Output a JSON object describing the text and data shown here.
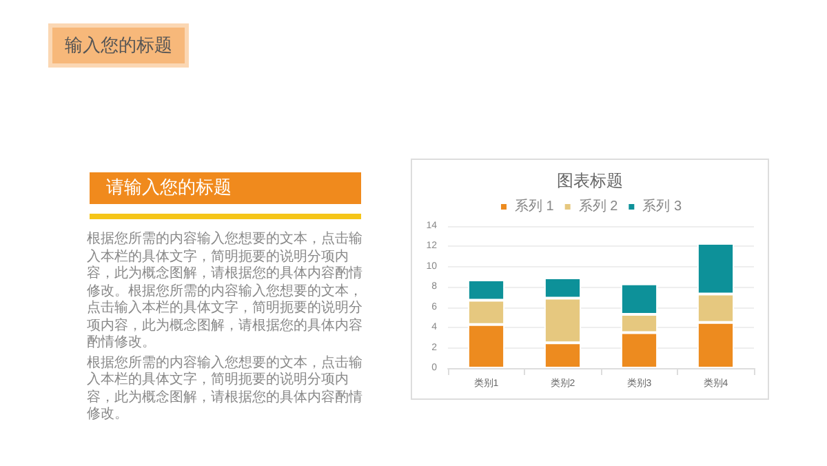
{
  "chart_data": [
    {
      "type": "other",
      "title": "输入您的标题",
      "subtitle": "请输入您的标题",
      "annotations": [
        "根据您所需的内容输入您想要的文本，点击输入本栏的具体文字，简明扼要的说明分项内容，此为概念图解，请根据您的具体内容酌情修改。根据您所需的内容输入您想要的文本，点击输入本栏的具体文字，简明扼要的说明分项内容，此为概念图解，请根据您的具体内容酌情修改。",
        "根据您所需的内容输入您想要的文本，点击输入本栏的具体文字，简明扼要的说明分项内容，此为概念图解，请根据您的具体内容酌情修改。"
      ]
    },
    {
      "type": "bar",
      "title": "图表标题",
      "categories": [
        "类别1",
        "类别2",
        "类别3",
        "类别4"
      ],
      "stacked": true,
      "series": [
        {
          "name": "系列 1",
          "color": "#ed8b1f",
          "values": [
            4.3,
            2.5,
            3.5,
            4.5
          ]
        },
        {
          "name": "系列 2",
          "color": "#e6c87f",
          "values": [
            2.4,
            4.4,
            1.8,
            2.8
          ]
        },
        {
          "name": "系列 3",
          "color": "#0d9199",
          "values": [
            2,
            2,
            3,
            5
          ]
        }
      ],
      "ylim": [
        0,
        14
      ],
      "yticks": [
        0,
        2,
        4,
        6,
        8,
        10,
        12,
        14
      ],
      "grid": "y",
      "legend": "top"
    }
  ]
}
